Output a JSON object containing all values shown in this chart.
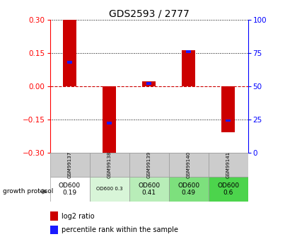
{
  "title": "GDS2593 / 2777",
  "samples": [
    "GSM99137",
    "GSM99138",
    "GSM99139",
    "GSM99140",
    "GSM99141"
  ],
  "log2_ratio": [
    0.3,
    -0.305,
    0.02,
    0.16,
    -0.21
  ],
  "percentile_rank": [
    68,
    22,
    52,
    76,
    24
  ],
  "ylim": [
    -0.3,
    0.3
  ],
  "right_ylim": [
    0,
    100
  ],
  "yticks_left": [
    -0.3,
    -0.15,
    0,
    0.15,
    0.3
  ],
  "yticks_right": [
    0,
    25,
    50,
    75,
    100
  ],
  "growth_protocol_labels": [
    "OD600\n0.19",
    "OD600 0.3",
    "OD600\n0.41",
    "OD600\n0.49",
    "OD600\n0.6"
  ],
  "growth_protocol_colors": [
    "#ffffff",
    "#d8f5d8",
    "#b8edb8",
    "#7de07d",
    "#4cd44c"
  ],
  "growth_protocol_small": [
    false,
    true,
    false,
    false,
    false
  ],
  "bar_color_red": "#cc0000",
  "bar_color_blue": "#1a1aff",
  "bar_width": 0.35,
  "blue_bar_width": 0.12,
  "blue_bar_height": 0.012,
  "grid_color": "#000000",
  "zero_line_color": "#cc0000",
  "header_bg": "#cccccc",
  "title_fontsize": 10,
  "tick_fontsize": 7.5
}
